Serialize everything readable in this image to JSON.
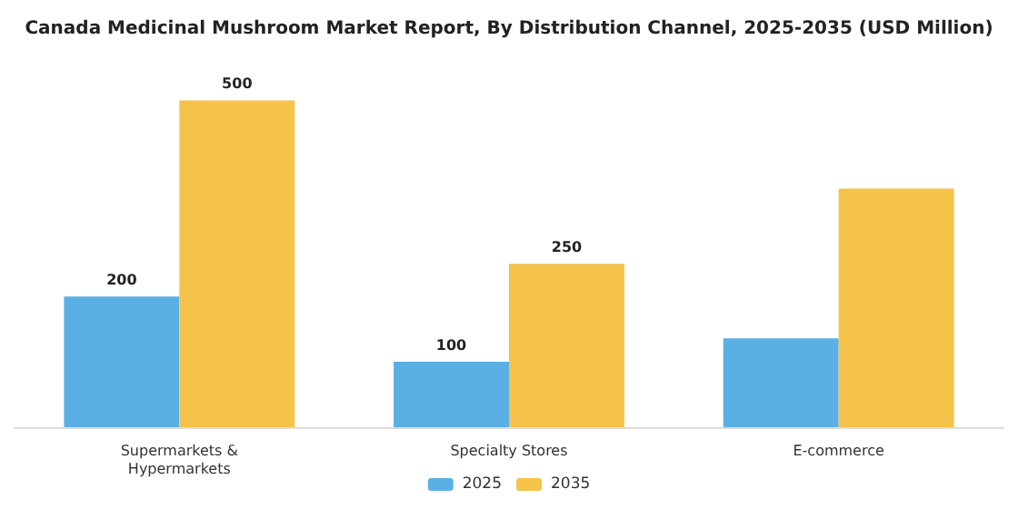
{
  "chart_data": {
    "type": "bar",
    "title": "Canada Medicinal Mushroom Market Report, By Distribution Channel, 2025-2035 (USD Million)",
    "categories": [
      "Supermarkets &\nHypermarkets",
      "Specialty Stores",
      "E-commerce"
    ],
    "series": [
      {
        "name": "2025",
        "color": "#5ab0e4",
        "values": [
          200,
          100,
          136
        ],
        "value_labels": [
          "200",
          "100",
          null
        ]
      },
      {
        "name": "2035",
        "color": "#f5c24a",
        "values": [
          500,
          250,
          365
        ],
        "value_labels": [
          "500",
          "250",
          null
        ]
      }
    ],
    "legend": "bottom"
  }
}
